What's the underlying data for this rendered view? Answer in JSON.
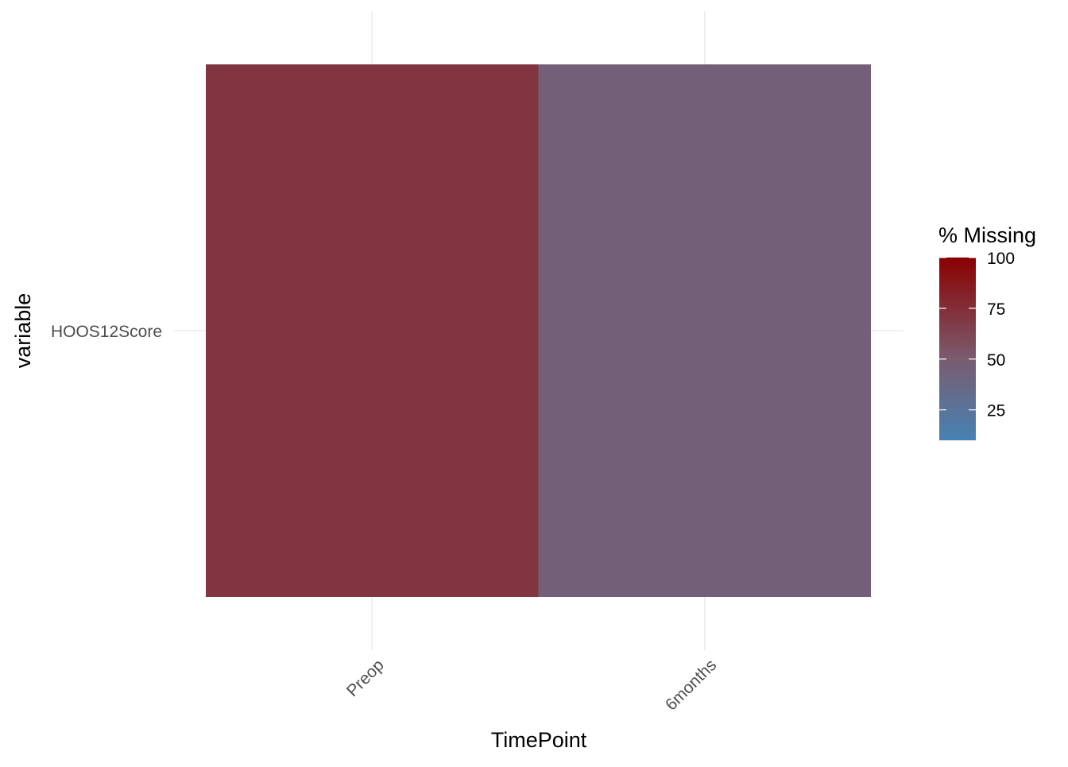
{
  "chart_data": {
    "type": "heatmap",
    "title": "",
    "xlabel": "TimePoint",
    "ylabel": "variable",
    "x_categories": [
      "Preop",
      "6months"
    ],
    "y_categories": [
      "HOOS12Score"
    ],
    "cells": [
      {
        "x": "Preop",
        "y": "HOOS12Score",
        "value": 71
      },
      {
        "x": "6months",
        "y": "HOOS12Score",
        "value": 45
      }
    ],
    "legend": {
      "title": "% Missing",
      "placement": "right",
      "ticks": [
        25,
        50,
        75,
        100
      ],
      "range": [
        10,
        100
      ],
      "low_color": "#4682b4",
      "mid_color": "#7a5b6e",
      "high_color": "#8b0000"
    },
    "grid": true,
    "x_tick_rotation": "45 degrees"
  }
}
